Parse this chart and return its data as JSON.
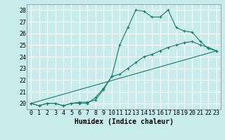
{
  "xlabel": "Humidex (Indice chaleur)",
  "ylabel": "",
  "bg_color": "#c8ecec",
  "grid_color": "#ffffff",
  "line_color": "#1a7a6a",
  "marker": "+",
  "xlim": [
    -0.5,
    23.5
  ],
  "ylim": [
    19.5,
    28.5
  ],
  "xticks": [
    0,
    1,
    2,
    3,
    4,
    5,
    6,
    7,
    8,
    9,
    10,
    11,
    12,
    13,
    14,
    15,
    16,
    17,
    18,
    19,
    20,
    21,
    22,
    23
  ],
  "yticks": [
    20,
    21,
    22,
    23,
    24,
    25,
    26,
    27,
    28
  ],
  "series1_x": [
    0,
    1,
    2,
    3,
    4,
    5,
    6,
    7,
    8,
    9,
    10,
    11,
    12,
    13,
    14,
    15,
    16,
    17,
    18,
    19,
    20,
    21,
    22,
    23
  ],
  "series1_y": [
    20.0,
    19.8,
    20.0,
    20.0,
    19.8,
    20.0,
    20.1,
    20.1,
    20.3,
    21.2,
    22.3,
    25.0,
    26.5,
    28.0,
    27.9,
    27.4,
    27.4,
    28.0,
    26.5,
    26.2,
    26.1,
    25.3,
    24.7,
    24.5
  ],
  "series2_x": [
    0,
    1,
    2,
    3,
    4,
    5,
    6,
    7,
    8,
    9,
    10,
    11,
    12,
    13,
    14,
    15,
    16,
    17,
    18,
    19,
    20,
    21,
    22,
    23
  ],
  "series2_y": [
    20.0,
    19.8,
    20.0,
    20.0,
    19.8,
    20.0,
    20.0,
    20.0,
    20.5,
    21.3,
    22.3,
    22.5,
    23.0,
    23.5,
    24.0,
    24.2,
    24.5,
    24.8,
    25.0,
    25.2,
    25.3,
    25.0,
    24.8,
    24.5
  ],
  "series3_x": [
    0,
    23
  ],
  "series3_y": [
    20.0,
    24.5
  ],
  "xlabel_fontsize": 7,
  "tick_fontsize": 6
}
